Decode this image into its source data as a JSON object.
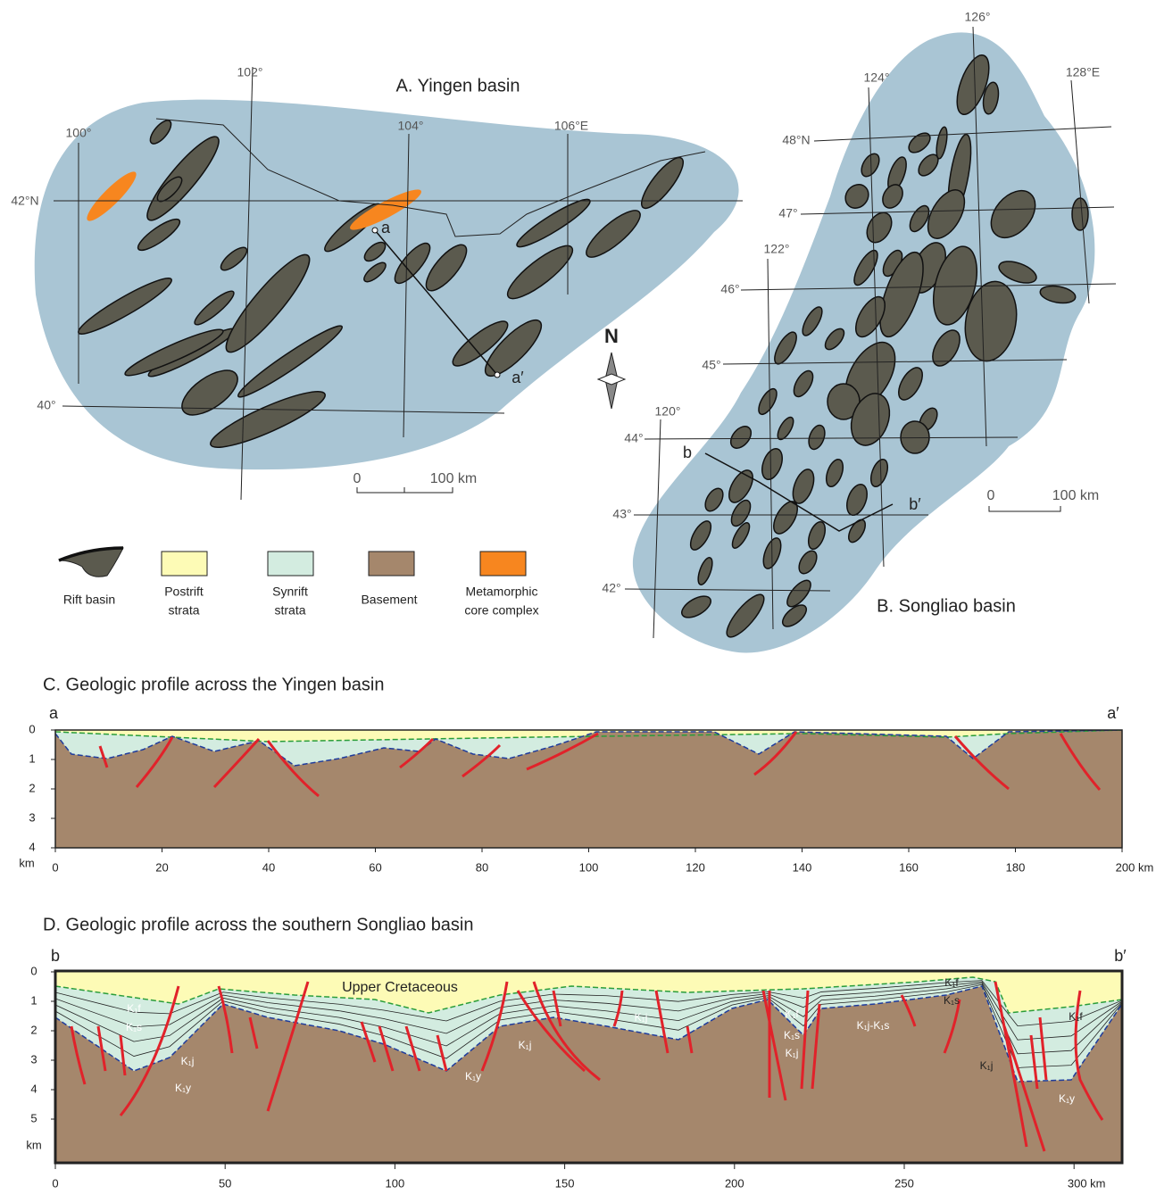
{
  "panelA": {
    "title": "A. Yingen basin",
    "longitudes": [
      "100°",
      "102°",
      "104°",
      "106°E"
    ],
    "latitudes": [
      "42°N",
      "40°"
    ],
    "section": [
      "a",
      "a′"
    ],
    "scale": [
      "0",
      "100 km"
    ]
  },
  "panelB": {
    "title": "B. Songliao basin",
    "longitudes": [
      "120°",
      "122°",
      "124°",
      "126°",
      "128°E"
    ],
    "latitudes": [
      "48°N",
      "47°",
      "46°",
      "45°",
      "44°",
      "43°",
      "42°"
    ],
    "section": [
      "b",
      "b′"
    ],
    "scale": [
      "0",
      "100 km"
    ]
  },
  "north": "N",
  "legend": [
    {
      "lines": [
        "Rift basin"
      ]
    },
    {
      "lines": [
        "Postrift",
        "strata"
      ]
    },
    {
      "lines": [
        "Synrift",
        "strata"
      ]
    },
    {
      "lines": [
        "Basement"
      ]
    },
    {
      "lines": [
        "Metamorphic",
        "core complex"
      ]
    }
  ],
  "profileC": {
    "title": "C. Geologic profile across the Yingen basin",
    "ends": [
      "a",
      "a′"
    ],
    "depth_ticks": [
      "0",
      "1",
      "2",
      "3",
      "4"
    ],
    "depth_unit": "km",
    "distance_ticks": [
      "0",
      "20",
      "40",
      "60",
      "80",
      "100",
      "120",
      "140",
      "160",
      "180",
      "200 km"
    ]
  },
  "profileD": {
    "title": "D. Geologic profile across the southern Songliao basin",
    "ends": [
      "b",
      "b′"
    ],
    "depth_ticks": [
      "0",
      "1",
      "2",
      "3",
      "4",
      "5"
    ],
    "depth_unit": "km",
    "distance_ticks": [
      "0",
      "50",
      "100",
      "150",
      "200",
      "250",
      "300 km"
    ],
    "labels": [
      "Upper Cretaceous",
      "K₁f",
      "K₁s",
      "K₁j",
      "K₁y",
      "K₁j",
      "K₁y",
      "K₁j",
      "K₁f",
      "K₁s",
      "K₁j",
      "K₁j-K₁s",
      "K₁f",
      "K₁s",
      "K₁f",
      "K₁j",
      "K₁y"
    ]
  }
}
